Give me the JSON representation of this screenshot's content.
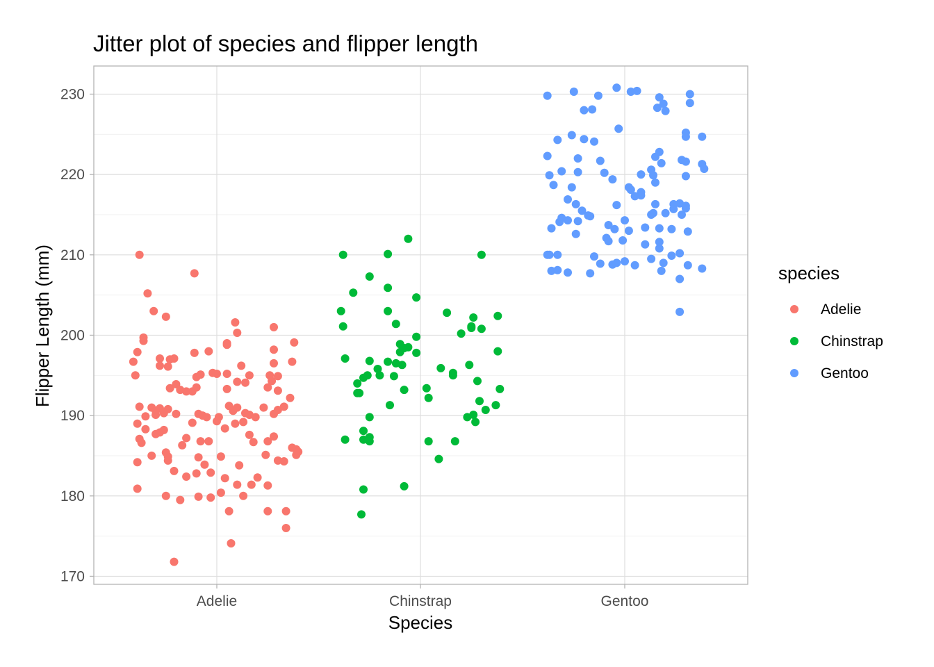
{
  "chart_data": {
    "type": "scatter",
    "subtype": "jitter",
    "title": "Jitter plot of species and flipper length",
    "xlabel": "Species",
    "ylabel": "Flipper Length (mm)",
    "categories": [
      "Adelie",
      "Chinstrap",
      "Gentoo"
    ],
    "ylim": [
      169,
      233.5
    ],
    "yticks": [
      170,
      180,
      190,
      200,
      210,
      220,
      230
    ],
    "grid": true,
    "legend": {
      "title": "species",
      "position": "right",
      "entries": [
        {
          "label": "Adelie",
          "color": "#F8766D"
        },
        {
          "label": "Chinstrap",
          "color": "#00BA38"
        },
        {
          "label": "Gentoo",
          "color": "#619CFF"
        }
      ]
    },
    "series": [
      {
        "name": "Adelie",
        "color": "#F8766D",
        "points": [
          [
            -0.38,
            210
          ],
          [
            -0.11,
            207.7
          ],
          [
            -0.34,
            205.2
          ],
          [
            -0.31,
            203
          ],
          [
            -0.25,
            202.3
          ],
          [
            0.09,
            201.6
          ],
          [
            0.28,
            201
          ],
          [
            0.1,
            200.3
          ],
          [
            -0.36,
            199.7
          ],
          [
            -0.36,
            199.3
          ],
          [
            0.05,
            199
          ],
          [
            0.05,
            198.8
          ],
          [
            0.38,
            199.1
          ],
          [
            -0.39,
            197.9
          ],
          [
            -0.11,
            197.8
          ],
          [
            -0.04,
            198
          ],
          [
            0.28,
            198.2
          ],
          [
            -0.41,
            196.7
          ],
          [
            -0.28,
            197.1
          ],
          [
            -0.23,
            197
          ],
          [
            -0.21,
            197.1
          ],
          [
            -0.28,
            196.2
          ],
          [
            -0.24,
            196.1
          ],
          [
            0.12,
            196.2
          ],
          [
            0.28,
            196.5
          ],
          [
            0.37,
            196.7
          ],
          [
            -0.4,
            195
          ],
          [
            -0.1,
            194.8
          ],
          [
            -0.08,
            195.1
          ],
          [
            -0.02,
            195.3
          ],
          [
            0.0,
            195.2
          ],
          [
            0.05,
            195.2
          ],
          [
            0.16,
            195
          ],
          [
            0.26,
            195
          ],
          [
            0.3,
            194.9
          ],
          [
            0.1,
            194.2
          ],
          [
            0.14,
            194.1
          ],
          [
            0.27,
            194.3
          ],
          [
            -0.23,
            193.4
          ],
          [
            -0.2,
            193.9
          ],
          [
            -0.18,
            193.2
          ],
          [
            -0.15,
            193
          ],
          [
            -0.12,
            193
          ],
          [
            -0.1,
            193.5
          ],
          [
            0.05,
            193.3
          ],
          [
            0.25,
            193.5
          ],
          [
            0.3,
            193.1
          ],
          [
            -0.38,
            191.1
          ],
          [
            -0.32,
            191
          ],
          [
            -0.3,
            190.6
          ],
          [
            -0.28,
            190.9
          ],
          [
            -0.26,
            190.3
          ],
          [
            -0.24,
            190.8
          ],
          [
            -0.2,
            190.2
          ],
          [
            -0.12,
            189.1
          ],
          [
            -0.09,
            190.2
          ],
          [
            -0.07,
            190
          ],
          [
            -0.05,
            189.8
          ],
          [
            0.01,
            189.8
          ],
          [
            0.06,
            191.2
          ],
          [
            0.08,
            190.6
          ],
          [
            0.1,
            191
          ],
          [
            0.14,
            190.3
          ],
          [
            0.16,
            190.1
          ],
          [
            0.19,
            189.8
          ],
          [
            0.23,
            191
          ],
          [
            0.28,
            190.2
          ],
          [
            0.3,
            190.7
          ],
          [
            0.33,
            191.1
          ],
          [
            0.36,
            192.2
          ],
          [
            -0.35,
            189.9
          ],
          [
            -0.3,
            190.1
          ],
          [
            -0.39,
            189
          ],
          [
            -0.35,
            188.3
          ],
          [
            -0.3,
            187.7
          ],
          [
            -0.28,
            187.9
          ],
          [
            -0.26,
            188.2
          ],
          [
            -0.17,
            186.3
          ],
          [
            -0.15,
            187.2
          ],
          [
            -0.08,
            186.8
          ],
          [
            -0.04,
            186.8
          ],
          [
            0.0,
            189.3
          ],
          [
            0.04,
            188.4
          ],
          [
            0.09,
            189
          ],
          [
            0.13,
            189.2
          ],
          [
            0.16,
            187.6
          ],
          [
            0.18,
            186.7
          ],
          [
            0.25,
            186.8
          ],
          [
            0.28,
            187.4
          ],
          [
            0.37,
            186
          ],
          [
            -0.38,
            187.1
          ],
          [
            -0.37,
            186.6
          ],
          [
            -0.32,
            185
          ],
          [
            -0.25,
            185.4
          ],
          [
            -0.24,
            184.9
          ],
          [
            -0.39,
            184.2
          ],
          [
            -0.24,
            184.4
          ],
          [
            -0.09,
            184.8
          ],
          [
            -0.06,
            183.9
          ],
          [
            0.02,
            184.9
          ],
          [
            0.11,
            183.8
          ],
          [
            0.24,
            185.1
          ],
          [
            0.3,
            184.4
          ],
          [
            0.33,
            184.3
          ],
          [
            0.39,
            185.8
          ],
          [
            0.39,
            185.1
          ],
          [
            0.4,
            185.5
          ],
          [
            -0.21,
            183.1
          ],
          [
            -0.15,
            182.4
          ],
          [
            -0.1,
            182.8
          ],
          [
            -0.03,
            182.9
          ],
          [
            0.04,
            182.2
          ],
          [
            0.1,
            181.4
          ],
          [
            0.17,
            181.4
          ],
          [
            0.2,
            182.3
          ],
          [
            0.25,
            181.3
          ],
          [
            -0.39,
            180.9
          ],
          [
            -0.25,
            180
          ],
          [
            -0.18,
            179.5
          ],
          [
            -0.09,
            179.9
          ],
          [
            -0.03,
            179.8
          ],
          [
            0.02,
            180.4
          ],
          [
            0.13,
            180
          ],
          [
            0.06,
            178.1
          ],
          [
            0.25,
            178.1
          ],
          [
            0.34,
            178.1
          ],
          [
            0.34,
            176
          ],
          [
            0.07,
            174.1
          ],
          [
            -0.21,
            171.8
          ]
        ]
      },
      {
        "name": "Chinstrap",
        "color": "#00BA38",
        "points": [
          [
            -0.38,
            210
          ],
          [
            -0.06,
            212
          ],
          [
            -0.16,
            210.1
          ],
          [
            0.3,
            210
          ],
          [
            -0.25,
            207.3
          ],
          [
            -0.33,
            205.3
          ],
          [
            -0.16,
            205.9
          ],
          [
            -0.02,
            204.7
          ],
          [
            -0.16,
            203
          ],
          [
            0.13,
            202.8
          ],
          [
            -0.39,
            203
          ],
          [
            0.38,
            202.4
          ],
          [
            0.26,
            202.2
          ],
          [
            -0.38,
            201.1
          ],
          [
            0.25,
            201.1
          ],
          [
            -0.12,
            201.4
          ],
          [
            0.25,
            200.9
          ],
          [
            0.3,
            200.8
          ],
          [
            0.2,
            200.2
          ],
          [
            -0.02,
            199.8
          ],
          [
            -0.1,
            198.9
          ],
          [
            -0.06,
            198.5
          ],
          [
            -0.08,
            198.4
          ],
          [
            -0.1,
            197.9
          ],
          [
            -0.02,
            197.8
          ],
          [
            0.38,
            198
          ],
          [
            -0.37,
            197.1
          ],
          [
            -0.25,
            196.8
          ],
          [
            -0.16,
            196.7
          ],
          [
            -0.12,
            196.5
          ],
          [
            -0.09,
            196.3
          ],
          [
            0.1,
            195.9
          ],
          [
            0.24,
            196.3
          ],
          [
            -0.21,
            195.8
          ],
          [
            -0.26,
            195
          ],
          [
            -0.28,
            194.7
          ],
          [
            -0.31,
            194
          ],
          [
            -0.13,
            194.9
          ],
          [
            -0.2,
            195
          ],
          [
            0.16,
            195.3
          ],
          [
            0.16,
            195
          ],
          [
            0.28,
            194.3
          ],
          [
            -0.08,
            193.2
          ],
          [
            0.03,
            193.4
          ],
          [
            0.04,
            192.2
          ],
          [
            -0.31,
            192.8
          ],
          [
            -0.3,
            192.8
          ],
          [
            0.29,
            191.8
          ],
          [
            0.37,
            191.3
          ],
          [
            0.39,
            193.3
          ],
          [
            -0.15,
            191.3
          ],
          [
            0.32,
            190.7
          ],
          [
            -0.25,
            189.8
          ],
          [
            0.23,
            189.8
          ],
          [
            0.26,
            190.1
          ],
          [
            0.27,
            189.2
          ],
          [
            -0.28,
            188.1
          ],
          [
            -0.25,
            187.3
          ],
          [
            0.04,
            186.8
          ],
          [
            -0.37,
            187
          ],
          [
            -0.28,
            187
          ],
          [
            -0.25,
            186.8
          ],
          [
            0.17,
            186.8
          ],
          [
            0.09,
            184.6
          ],
          [
            -0.08,
            181.2
          ],
          [
            -0.28,
            180.8
          ],
          [
            -0.29,
            177.7
          ]
        ]
      },
      {
        "name": "Gentoo",
        "color": "#619CFF",
        "points": [
          [
            -0.04,
            230.8
          ],
          [
            -0.25,
            230.3
          ],
          [
            0.03,
            230.3
          ],
          [
            0.06,
            230.4
          ],
          [
            0.32,
            230
          ],
          [
            -0.38,
            229.8
          ],
          [
            -0.13,
            229.8
          ],
          [
            0.19,
            228.8
          ],
          [
            0.17,
            229.6
          ],
          [
            -0.2,
            228
          ],
          [
            -0.16,
            228.1
          ],
          [
            0.16,
            228.3
          ],
          [
            0.2,
            227.9
          ],
          [
            0.32,
            228.9
          ],
          [
            -0.03,
            225.7
          ],
          [
            -0.26,
            224.9
          ],
          [
            -0.33,
            224.3
          ],
          [
            -0.2,
            224.4
          ],
          [
            -0.15,
            224.1
          ],
          [
            0.3,
            225.2
          ],
          [
            0.3,
            224.7
          ],
          [
            0.38,
            224.7
          ],
          [
            -0.38,
            222.3
          ],
          [
            -0.23,
            222
          ],
          [
            0.15,
            222.2
          ],
          [
            0.17,
            222.8
          ],
          [
            0.28,
            221.8
          ],
          [
            0.3,
            221.6
          ],
          [
            -0.12,
            221.7
          ],
          [
            0.38,
            221.3
          ],
          [
            -0.1,
            220.2
          ],
          [
            -0.37,
            219.9
          ],
          [
            -0.31,
            220.4
          ],
          [
            -0.23,
            220.3
          ],
          [
            -0.06,
            219.4
          ],
          [
            0.08,
            220
          ],
          [
            0.15,
            219
          ],
          [
            0.13,
            220.6
          ],
          [
            0.14,
            219.9
          ],
          [
            0.18,
            221.4
          ],
          [
            0.3,
            219.8
          ],
          [
            0.39,
            220.7
          ],
          [
            -0.35,
            218.7
          ],
          [
            -0.26,
            218.4
          ],
          [
            0.02,
            218.4
          ],
          [
            0.03,
            218.1
          ],
          [
            0.08,
            217.8
          ],
          [
            0.08,
            217.4
          ],
          [
            0.05,
            217.3
          ],
          [
            -0.28,
            216.9
          ],
          [
            -0.24,
            216.3
          ],
          [
            -0.04,
            216.2
          ],
          [
            0.27,
            216.4
          ],
          [
            0.3,
            216.1
          ],
          [
            0.24,
            215.7
          ],
          [
            0.3,
            215.8
          ],
          [
            -0.31,
            214.6
          ],
          [
            -0.21,
            215.5
          ],
          [
            -0.18,
            214.9
          ],
          [
            -0.23,
            214.2
          ],
          [
            -0.17,
            214.8
          ],
          [
            0.0,
            214.3
          ],
          [
            0.13,
            215
          ],
          [
            0.14,
            215.2
          ],
          [
            0.2,
            215.2
          ],
          [
            0.28,
            215
          ],
          [
            0.15,
            216.3
          ],
          [
            0.24,
            216.3
          ],
          [
            -0.32,
            214.1
          ],
          [
            -0.36,
            213.3
          ],
          [
            -0.28,
            214.3
          ],
          [
            -0.09,
            212.1
          ],
          [
            -0.08,
            211.7
          ],
          [
            -0.05,
            213.2
          ],
          [
            -0.08,
            213.7
          ],
          [
            0.02,
            213
          ],
          [
            0.1,
            213.4
          ],
          [
            0.17,
            213.3
          ],
          [
            0.23,
            213.2
          ],
          [
            -0.24,
            212.6
          ],
          [
            0.17,
            211.6
          ],
          [
            -0.38,
            210
          ],
          [
            -0.33,
            210
          ],
          [
            -0.37,
            210
          ],
          [
            -0.36,
            208
          ],
          [
            -0.33,
            208.1
          ],
          [
            -0.28,
            207.8
          ],
          [
            -0.17,
            207.7
          ],
          [
            -0.15,
            209.8
          ],
          [
            -0.12,
            208.9
          ],
          [
            -0.06,
            208.8
          ],
          [
            -0.04,
            209
          ],
          [
            0.0,
            209.2
          ],
          [
            0.05,
            208.7
          ],
          [
            0.1,
            211.3
          ],
          [
            0.13,
            209.5
          ],
          [
            0.19,
            209
          ],
          [
            0.23,
            209.9
          ],
          [
            0.27,
            210.2
          ],
          [
            0.27,
            207
          ],
          [
            0.31,
            208.7
          ],
          [
            0.31,
            212.9
          ],
          [
            0.17,
            210.8
          ],
          [
            0.18,
            208
          ],
          [
            -0.01,
            211.8
          ],
          [
            0.38,
            208.3
          ],
          [
            0.27,
            202.9
          ]
        ]
      }
    ]
  }
}
